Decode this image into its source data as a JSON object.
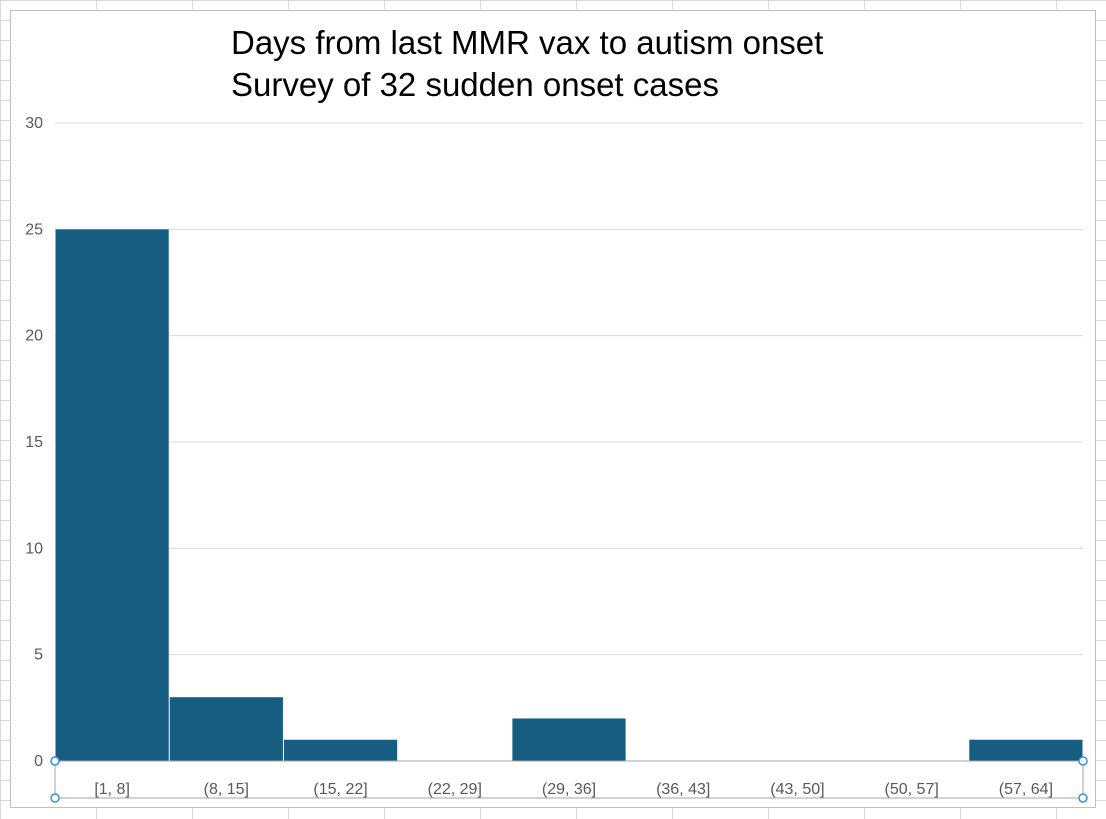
{
  "chart_data": {
    "type": "bar",
    "title": "Days from last MMR vax to autism onset",
    "subtitle": "Survey of 32 sudden onset cases",
    "xlabel": "",
    "ylabel": "",
    "categories": [
      "[1, 8]",
      "(8, 15]",
      "(15, 22]",
      "(22, 29]",
      "(29, 36]",
      "(36, 43]",
      "(43, 50]",
      "(50, 57]",
      "(57, 64]"
    ],
    "values": [
      25,
      3,
      1,
      0,
      2,
      0,
      0,
      0,
      1
    ],
    "ylim": [
      0,
      30
    ],
    "yticks": [
      0,
      5,
      10,
      15,
      20,
      25,
      30
    ],
    "grid": true,
    "legend": "none",
    "bar_color": "#175e82",
    "gridline_color": "#d9d9d9",
    "axis_label_color": "#595959"
  }
}
